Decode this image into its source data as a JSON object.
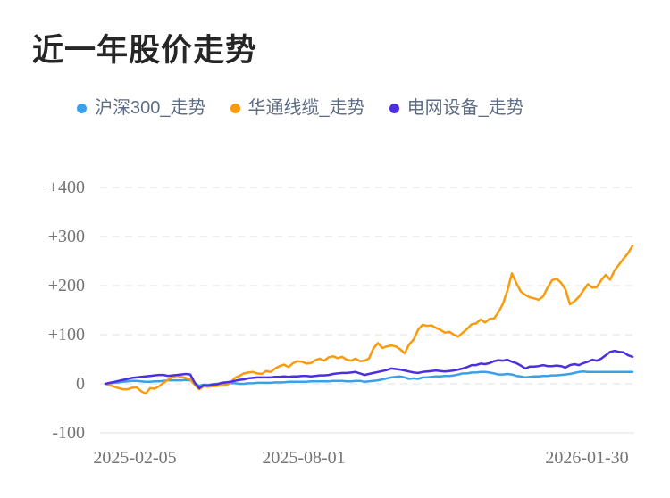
{
  "title": "近一年股价走势",
  "chart_data": {
    "type": "line",
    "title": "近一年股价走势",
    "legend_position": "top",
    "grid": "horizontal dashed gridlines",
    "x_tick_labels": [
      "2025-02-05",
      "2025-08-01",
      "2026-01-30"
    ],
    "y_tick_labels": [
      "+400",
      "+300",
      "+200",
      "+100",
      "0",
      "-100"
    ],
    "y_ticks": [
      400,
      300,
      200,
      100,
      0,
      -100
    ],
    "ylim": [
      -100,
      450
    ],
    "x_range": [
      "2025-02-05",
      "2026-01-30"
    ],
    "unit": "percent change",
    "series": [
      {
        "name": "沪深300_走势",
        "color": "#3aa0e8",
        "values": [
          0,
          1,
          2,
          3,
          4,
          5,
          6,
          6,
          5,
          4,
          4,
          5,
          5,
          6,
          7,
          7,
          7,
          7,
          8,
          7,
          1,
          -4,
          -2,
          -2,
          -1,
          0,
          0,
          1,
          1,
          1,
          0,
          0,
          1,
          1,
          2,
          2,
          2,
          2,
          3,
          3,
          3,
          4,
          4,
          4,
          4,
          4,
          5,
          5,
          5,
          5,
          5,
          6,
          6,
          6,
          5,
          5,
          6,
          6,
          4,
          5,
          6,
          7,
          9,
          11,
          13,
          14,
          15,
          13,
          10,
          11,
          10,
          13,
          13,
          14,
          15,
          15,
          16,
          16,
          17,
          19,
          21,
          21,
          23,
          23,
          24,
          24,
          23,
          21,
          19,
          19,
          20,
          19,
          16,
          15,
          13,
          14,
          15,
          15,
          16,
          16,
          17,
          17,
          18,
          19,
          20,
          22,
          24,
          25,
          24,
          24,
          24,
          24,
          24,
          24,
          24,
          24,
          24,
          24,
          24
        ]
      },
      {
        "name": "华通线缆_走势",
        "color": "#f99b0d",
        "values": [
          0,
          -3,
          -6,
          -9,
          -11,
          -11,
          -8,
          -7,
          -15,
          -20,
          -9,
          -10,
          -5,
          2,
          8,
          14,
          16,
          14,
          12,
          9,
          -2,
          -11,
          -5,
          -6,
          -5,
          -4,
          -3,
          -3,
          2,
          12,
          16,
          21,
          23,
          24,
          21,
          20,
          26,
          24,
          31,
          36,
          39,
          34,
          42,
          46,
          45,
          41,
          42,
          48,
          51,
          47,
          54,
          56,
          52,
          55,
          49,
          47,
          51,
          46,
          47,
          51,
          72,
          83,
          73,
          76,
          78,
          76,
          70,
          62,
          80,
          90,
          110,
          120,
          118,
          119,
          114,
          110,
          104,
          106,
          100,
          96,
          104,
          112,
          121,
          123,
          131,
          125,
          132,
          133,
          146,
          163,
          190,
          225,
          205,
          188,
          181,
          176,
          174,
          171,
          178,
          196,
          211,
          214,
          206,
          192,
          162,
          168,
          177,
          190,
          203,
          196,
          197,
          211,
          222,
          212,
          231,
          243,
          255,
          266,
          281
        ]
      },
      {
        "name": "电网设备_走势",
        "color": "#4c30e0",
        "values": [
          0,
          2,
          4,
          6,
          8,
          10,
          12,
          13,
          14,
          15,
          16,
          17,
          18,
          18,
          16,
          17,
          18,
          19,
          20,
          19,
          2,
          -9,
          -3,
          -4,
          -1,
          -1,
          2,
          3,
          4,
          6,
          8,
          9,
          11,
          12,
          13,
          13,
          13,
          13,
          14,
          14,
          15,
          14,
          15,
          15,
          16,
          16,
          15,
          16,
          17,
          17,
          18,
          20,
          21,
          22,
          22,
          23,
          24,
          21,
          18,
          20,
          22,
          24,
          26,
          28,
          31,
          30,
          29,
          27,
          25,
          23,
          22,
          24,
          25,
          26,
          27,
          26,
          25,
          26,
          27,
          29,
          31,
          34,
          38,
          38,
          41,
          40,
          42,
          46,
          48,
          47,
          49,
          45,
          42,
          37,
          31,
          35,
          35,
          36,
          38,
          36,
          36,
          37,
          36,
          33,
          38,
          40,
          38,
          42,
          45,
          49,
          47,
          51,
          58,
          65,
          67,
          65,
          64,
          58,
          55
        ]
      }
    ]
  }
}
